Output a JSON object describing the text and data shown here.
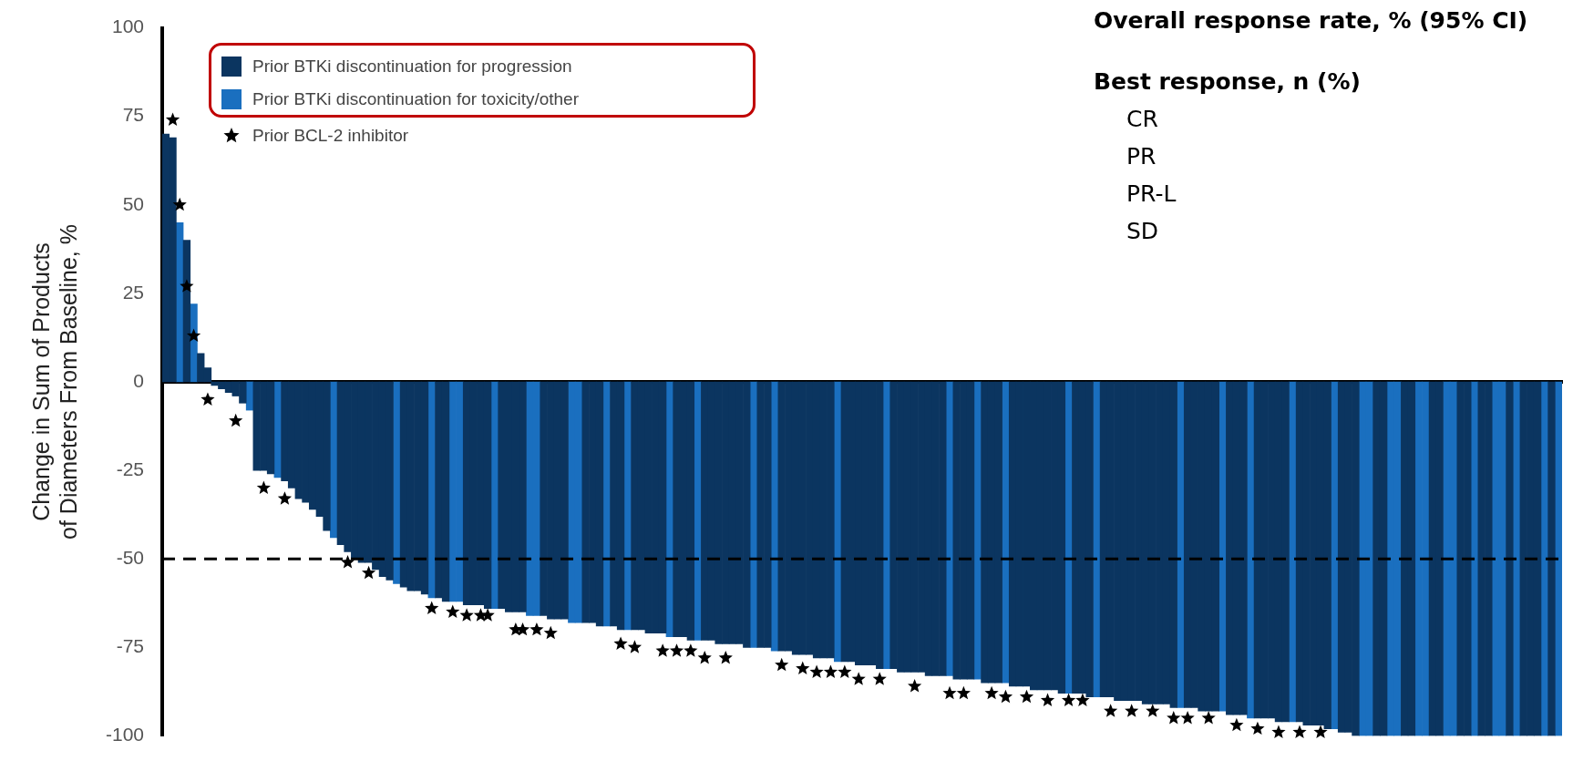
{
  "chart_data": {
    "type": "bar",
    "ylabel": "Change in Sum of Products\nof Diameters From Baseline, %",
    "categories": [
      null,
      null,
      null,
      null,
      null,
      null,
      null,
      null,
      null,
      null,
      null,
      null,
      null,
      null,
      null,
      null,
      null,
      null,
      null,
      null,
      null,
      null,
      null,
      null,
      null,
      null,
      null,
      null,
      null,
      null,
      null,
      null,
      null,
      null,
      null,
      null,
      null,
      null,
      null,
      null,
      null,
      null,
      null,
      null,
      null,
      null,
      null,
      null,
      null,
      null,
      null,
      null,
      null,
      null,
      null,
      null,
      null,
      null,
      null,
      null,
      null,
      null,
      null,
      null,
      null,
      null,
      null,
      null,
      null,
      null,
      null,
      null,
      null,
      null,
      null,
      null,
      null,
      null,
      null,
      null,
      null,
      null,
      null,
      null,
      null,
      null,
      null,
      null,
      null,
      null,
      null,
      null,
      null,
      null,
      null,
      null,
      null,
      null,
      null,
      null,
      null,
      null,
      null,
      null,
      null,
      null,
      null,
      null,
      null,
      null,
      null,
      null,
      null,
      null,
      null,
      null,
      null,
      null,
      null,
      null,
      null,
      null,
      null,
      null,
      null,
      null,
      null,
      null,
      null,
      null,
      null,
      null,
      null,
      null,
      null,
      null,
      null,
      null,
      null,
      null,
      null,
      null,
      null,
      null,
      null,
      null,
      null,
      null,
      null,
      null,
      null,
      null,
      null,
      null,
      null,
      null,
      null,
      null,
      null,
      null,
      null,
      null,
      null,
      null,
      null,
      null,
      null,
      null,
      null,
      null,
      null,
      null,
      null,
      null,
      null,
      null,
      null,
      null,
      null,
      null,
      null,
      null,
      null,
      null,
      null,
      null,
      null,
      null,
      null,
      null,
      null,
      null,
      null,
      null,
      null,
      null,
      null,
      null,
      null,
      null
    ],
    "series": [
      {
        "name": "Prior BTKi discontinuation for progression",
        "color": "#0b3560",
        "values": [
          70,
          69,
          null,
          40,
          null,
          8,
          4,
          -1,
          -2,
          -3,
          -4,
          -6,
          null,
          -25,
          -25,
          -26,
          null,
          -28,
          -30,
          -33,
          -34,
          -36,
          -38,
          -42,
          null,
          -46,
          -48,
          -50,
          -51,
          -51,
          -53,
          -55,
          -56,
          null,
          -58,
          -59,
          -59,
          -60,
          null,
          -61,
          -62,
          null,
          null,
          -63,
          -63,
          -63,
          -64,
          null,
          -64,
          -65,
          -65,
          -65,
          null,
          null,
          -66,
          -67,
          -67,
          -67,
          null,
          null,
          -68,
          -68,
          -69,
          null,
          -69,
          -70,
          null,
          -70,
          -70,
          -71,
          -71,
          -71,
          null,
          -72,
          -72,
          -73,
          null,
          -73,
          -73,
          -74,
          -74,
          -74,
          -74,
          -75,
          null,
          -75,
          -75,
          null,
          -76,
          -76,
          -77,
          -77,
          -77,
          -78,
          -78,
          -78,
          null,
          -79,
          -79,
          -80,
          -80,
          -80,
          -81,
          null,
          -81,
          -82,
          -82,
          -82,
          -82,
          -83,
          -83,
          -83,
          null,
          -84,
          -84,
          -84,
          null,
          -85,
          -85,
          -85,
          null,
          -86,
          -86,
          -86,
          -87,
          -87,
          -87,
          -87,
          -88,
          null,
          -88,
          -88,
          -89,
          null,
          -89,
          -89,
          -90,
          -90,
          -90,
          -90,
          -91,
          -91,
          -91,
          -91,
          -92,
          null,
          -92,
          -92,
          -93,
          -93,
          -93,
          null,
          -94,
          -94,
          -94,
          null,
          -95,
          -95,
          -95,
          -96,
          -96,
          null,
          -96,
          -97,
          -97,
          -97,
          -98,
          null,
          -99,
          -99,
          -100,
          null,
          null,
          -100,
          -100,
          null,
          null,
          -100,
          -100,
          null,
          null,
          -100,
          -100,
          null,
          null,
          -100,
          -100,
          null,
          -100,
          -100,
          null,
          null,
          -100,
          null,
          -100,
          -100,
          -100,
          null,
          -100,
          null
        ]
      },
      {
        "name": "Prior BTKi discontinuation for toxicity/other",
        "color": "#1a6fbf",
        "values": [
          null,
          null,
          45,
          null,
          22,
          null,
          null,
          null,
          null,
          null,
          null,
          null,
          -8,
          null,
          null,
          null,
          -27,
          null,
          null,
          null,
          null,
          null,
          null,
          null,
          -44,
          null,
          null,
          null,
          null,
          null,
          null,
          null,
          null,
          -57,
          null,
          null,
          null,
          null,
          -61,
          null,
          null,
          -62,
          -62,
          null,
          null,
          null,
          null,
          -64,
          null,
          null,
          null,
          null,
          -66,
          -66,
          null,
          null,
          null,
          null,
          -68,
          -68,
          null,
          null,
          null,
          -69,
          null,
          null,
          -70,
          null,
          null,
          null,
          null,
          null,
          -72,
          null,
          null,
          null,
          -73,
          null,
          null,
          null,
          null,
          null,
          null,
          null,
          -75,
          null,
          null,
          -76,
          null,
          null,
          null,
          null,
          null,
          null,
          null,
          null,
          -79,
          null,
          null,
          null,
          null,
          null,
          null,
          -81,
          null,
          null,
          null,
          null,
          null,
          null,
          null,
          null,
          -83,
          null,
          null,
          null,
          -84,
          null,
          null,
          null,
          -85,
          null,
          null,
          null,
          null,
          null,
          null,
          null,
          null,
          -88,
          null,
          null,
          null,
          -89,
          null,
          null,
          null,
          null,
          null,
          null,
          null,
          null,
          null,
          null,
          null,
          -92,
          null,
          null,
          null,
          null,
          null,
          -93,
          null,
          null,
          null,
          -95,
          null,
          null,
          null,
          null,
          null,
          -96,
          null,
          null,
          null,
          null,
          null,
          -98,
          null,
          null,
          null,
          -100,
          -100,
          null,
          null,
          -100,
          -100,
          null,
          null,
          -100,
          -100,
          null,
          null,
          -100,
          -100,
          null,
          null,
          -100,
          null,
          null,
          -100,
          -100,
          null,
          -100,
          null,
          null,
          null,
          -100,
          null,
          -100
        ]
      },
      {
        "name": "Prior BCL-2 inhibitor",
        "type": "scatter",
        "color": "#000000",
        "values": [
          null,
          74,
          50,
          27,
          13,
          null,
          -5,
          null,
          null,
          null,
          -11,
          null,
          null,
          null,
          -30,
          null,
          null,
          -33,
          null,
          null,
          null,
          null,
          null,
          null,
          null,
          null,
          -51,
          null,
          null,
          -54,
          null,
          null,
          null,
          null,
          null,
          null,
          null,
          null,
          -64,
          null,
          null,
          -65,
          null,
          -66,
          null,
          -66,
          -66,
          null,
          null,
          null,
          -70,
          -70,
          null,
          -70,
          null,
          -71,
          null,
          null,
          null,
          null,
          null,
          null,
          null,
          null,
          null,
          -74,
          null,
          -75,
          null,
          null,
          null,
          -76,
          null,
          -76,
          null,
          -76,
          null,
          -78,
          null,
          null,
          -78,
          null,
          null,
          null,
          null,
          null,
          null,
          null,
          -80,
          null,
          null,
          -81,
          null,
          -82,
          null,
          -82,
          null,
          -82,
          null,
          -84,
          null,
          null,
          -84,
          null,
          null,
          null,
          null,
          -86,
          null,
          null,
          null,
          null,
          -88,
          null,
          -88,
          null,
          null,
          null,
          -88,
          null,
          -89,
          null,
          null,
          -89,
          null,
          null,
          -90,
          null,
          null,
          -90,
          null,
          -90,
          null,
          null,
          null,
          -93,
          null,
          null,
          -93,
          null,
          null,
          -93,
          null,
          null,
          -95,
          null,
          -95,
          null,
          null,
          -95,
          null,
          null,
          null,
          -97,
          null,
          null,
          -98,
          null,
          null,
          -99,
          null,
          null,
          -99,
          null,
          null,
          -99,
          null,
          null,
          null,
          null,
          null,
          null,
          null,
          null,
          null,
          null,
          null,
          null,
          null,
          null,
          null,
          null,
          null,
          null,
          null,
          null,
          null,
          null,
          null,
          null,
          null,
          null,
          null,
          null,
          null,
          null,
          null,
          null,
          null,
          null
        ]
      }
    ],
    "marker": "star",
    "ylim": [
      -100,
      100
    ],
    "yticks": [
      -100,
      -75,
      -50,
      -25,
      0,
      25,
      50,
      75,
      100
    ],
    "ref_lines": [
      {
        "axis": "y",
        "value": -50,
        "label": null,
        "color": "#000000",
        "line_style": "dashed"
      }
    ],
    "legend": "top left",
    "annotations": [
      "Overall response rate, % (95% CI)",
      "Best response, n (%)",
      "CR",
      "PR",
      "PR-L",
      "SD"
    ]
  }
}
